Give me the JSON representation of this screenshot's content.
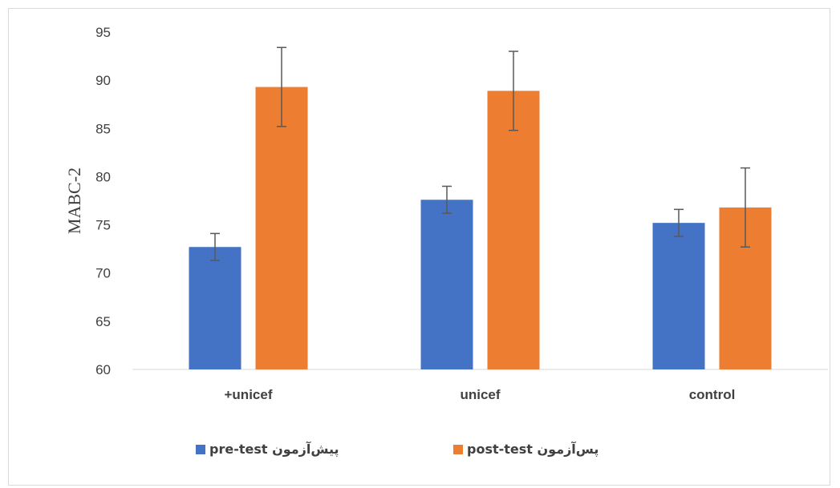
{
  "chart_data": {
    "type": "bar",
    "categories": [
      "+unicef",
      "unicef",
      "control"
    ],
    "ylabel": "MABC-2",
    "ylim": [
      60,
      95
    ],
    "yticks": [
      60,
      65,
      70,
      75,
      80,
      85,
      90,
      95
    ],
    "grid": false,
    "legend_position": "bottom",
    "series": [
      {
        "name": "pre-test  پیش‌آزمون",
        "color": "#4472C4",
        "values": [
          72.7,
          77.6,
          75.2
        ],
        "errors": [
          1.4,
          1.4,
          1.4
        ]
      },
      {
        "name": "post-test  پس‌آزمون",
        "color": "#ED7D31",
        "values": [
          89.3,
          88.9,
          76.8
        ],
        "errors": [
          4.1,
          4.1,
          4.1
        ]
      }
    ]
  }
}
